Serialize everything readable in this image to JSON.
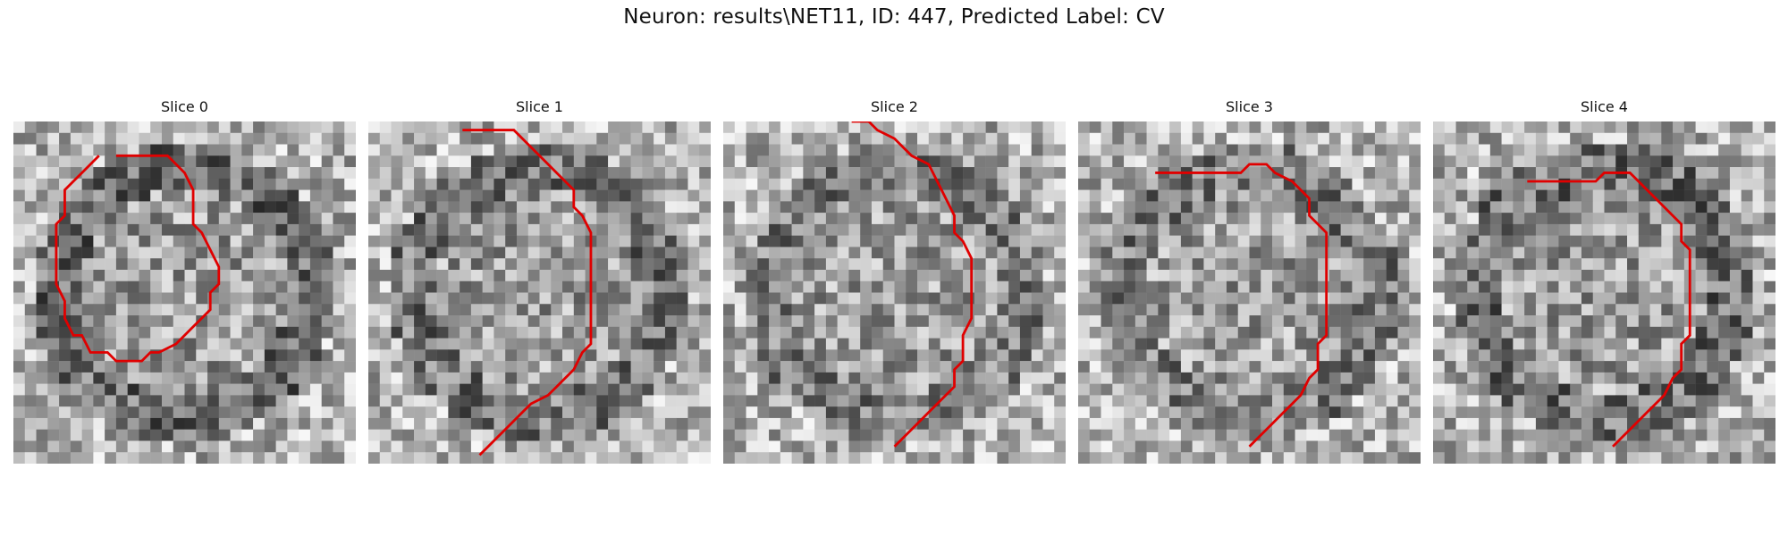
{
  "title": "Neuron: results\\NET11, ID: 447, Predicted Label: CV",
  "outline_color": "#e00000",
  "slices": [
    {
      "label": "Slice 0",
      "seed": 11,
      "dark_ring": 0.62,
      "outline": [
        [
          12,
          4
        ],
        [
          18,
          4
        ],
        [
          20,
          6
        ],
        [
          21,
          8
        ],
        [
          21,
          12
        ],
        [
          22,
          13
        ],
        [
          23,
          15
        ],
        [
          24,
          17
        ],
        [
          24,
          19
        ],
        [
          23,
          20
        ],
        [
          23,
          22
        ],
        [
          22,
          23
        ],
        [
          21,
          24
        ],
        [
          20,
          25
        ],
        [
          19,
          26
        ],
        [
          17,
          27
        ],
        [
          16,
          27
        ],
        [
          15,
          28
        ],
        [
          12,
          28
        ],
        [
          11,
          27
        ],
        [
          9,
          27
        ],
        [
          8,
          25
        ],
        [
          7,
          25
        ],
        [
          6,
          23
        ],
        [
          6,
          21
        ],
        [
          5,
          19
        ],
        [
          5,
          17
        ],
        [
          5,
          14
        ],
        [
          5,
          12
        ],
        [
          6,
          11
        ],
        [
          6,
          8
        ],
        [
          7,
          7
        ],
        [
          8,
          6
        ],
        [
          9,
          5
        ],
        [
          10,
          4
        ]
      ]
    },
    {
      "label": "Slice 1",
      "seed": 23,
      "dark_ring": 0.55,
      "outline": [
        [
          11,
          1
        ],
        [
          17,
          1
        ],
        [
          19,
          3
        ],
        [
          21,
          5
        ],
        [
          22,
          6
        ],
        [
          24,
          8
        ],
        [
          24,
          10
        ],
        [
          25,
          11
        ],
        [
          26,
          13
        ],
        [
          26,
          26
        ],
        [
          25,
          27
        ],
        [
          24,
          29
        ],
        [
          23,
          30
        ],
        [
          22,
          31
        ],
        [
          21,
          32
        ],
        [
          19,
          33
        ],
        [
          18,
          34
        ],
        [
          17,
          35
        ],
        [
          16,
          36
        ],
        [
          15,
          37
        ],
        [
          14,
          38
        ],
        [
          13,
          39
        ]
      ]
    },
    {
      "label": "Slice 2",
      "seed": 37,
      "dark_ring": 0.5,
      "outline": [
        [
          15,
          0
        ],
        [
          17,
          0
        ],
        [
          18,
          1
        ],
        [
          20,
          2
        ],
        [
          21,
          3
        ],
        [
          22,
          4
        ],
        [
          24,
          5
        ],
        [
          25,
          7
        ],
        [
          26,
          9
        ],
        [
          27,
          11
        ],
        [
          27,
          13
        ],
        [
          28,
          14
        ],
        [
          29,
          16
        ],
        [
          29,
          23
        ],
        [
          28,
          25
        ],
        [
          28,
          28
        ],
        [
          27,
          29
        ],
        [
          27,
          31
        ],
        [
          26,
          32
        ],
        [
          25,
          33
        ],
        [
          24,
          34
        ],
        [
          23,
          35
        ],
        [
          22,
          36
        ],
        [
          20,
          38
        ]
      ]
    },
    {
      "label": "Slice 3",
      "seed": 51,
      "dark_ring": 0.5,
      "outline": [
        [
          9,
          6
        ],
        [
          19,
          6
        ],
        [
          20,
          5
        ],
        [
          22,
          5
        ],
        [
          23,
          6
        ],
        [
          25,
          7
        ],
        [
          26,
          8
        ],
        [
          27,
          9
        ],
        [
          27,
          11
        ],
        [
          28,
          12
        ],
        [
          29,
          13
        ],
        [
          29,
          25
        ],
        [
          28,
          26
        ],
        [
          28,
          29
        ],
        [
          27,
          30
        ],
        [
          26,
          32
        ],
        [
          25,
          33
        ],
        [
          24,
          34
        ],
        [
          23,
          35
        ],
        [
          22,
          36
        ],
        [
          21,
          37
        ],
        [
          20,
          38
        ]
      ]
    },
    {
      "label": "Slice 4",
      "seed": 67,
      "dark_ring": 0.6,
      "outline": [
        [
          11,
          7
        ],
        [
          19,
          7
        ],
        [
          20,
          6
        ],
        [
          23,
          6
        ],
        [
          24,
          7
        ],
        [
          25,
          8
        ],
        [
          26,
          9
        ],
        [
          27,
          10
        ],
        [
          28,
          11
        ],
        [
          29,
          12
        ],
        [
          29,
          14
        ],
        [
          30,
          15
        ],
        [
          30,
          25
        ],
        [
          29,
          26
        ],
        [
          29,
          29
        ],
        [
          28,
          30
        ],
        [
          27,
          32
        ],
        [
          26,
          33
        ],
        [
          25,
          34
        ],
        [
          24,
          35
        ],
        [
          23,
          36
        ],
        [
          22,
          37
        ],
        [
          21,
          38
        ]
      ]
    }
  ]
}
